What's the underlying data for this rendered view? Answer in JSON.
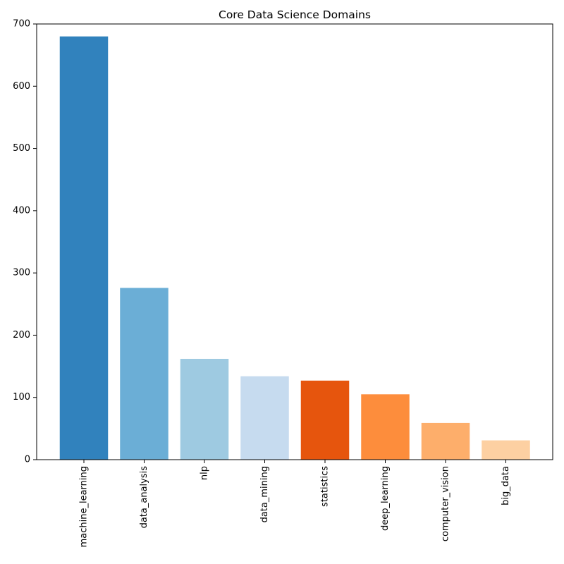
{
  "chart_data": {
    "type": "bar",
    "title": "Core Data Science Domains",
    "xlabel": "",
    "ylabel": "",
    "categories": [
      "machine_learning",
      "data_analysis",
      "nlp",
      "data_mining",
      "statistics",
      "deep_learning",
      "computer_vision",
      "big_data"
    ],
    "values": [
      680,
      276,
      162,
      134,
      127,
      105,
      59,
      31
    ],
    "colors": [
      "#3182bd",
      "#6baed6",
      "#9ecae1",
      "#c6dbef",
      "#e6550d",
      "#fd8d3c",
      "#fdae6b",
      "#fdd0a2"
    ],
    "ylim": [
      0,
      700
    ],
    "yticks": [
      0,
      100,
      200,
      300,
      400,
      500,
      600,
      700
    ],
    "grid": false
  }
}
